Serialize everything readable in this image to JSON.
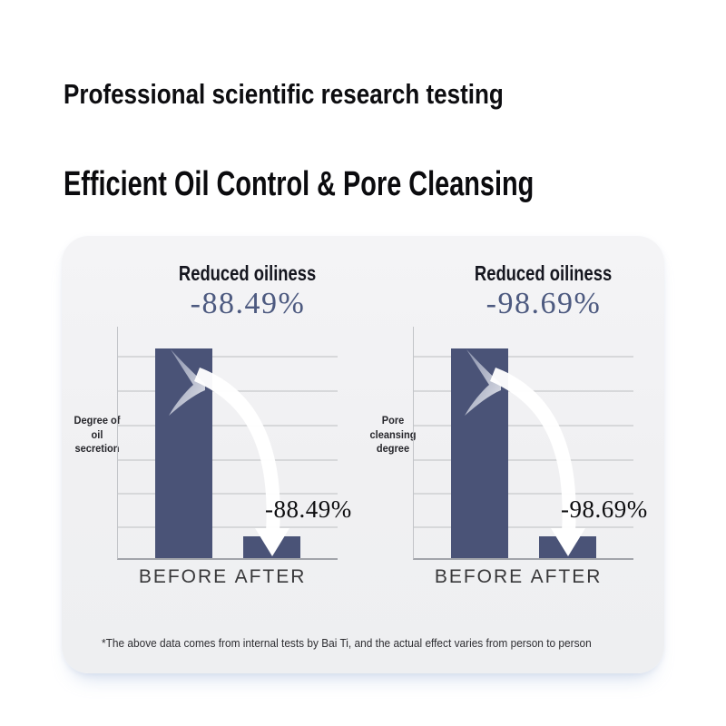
{
  "page": {
    "title_line1": "Professional scientific research testing",
    "title_line2": "Efficient Oil Control & Pore Cleansing",
    "footnote": "*The above data comes from internal tests by Bai Ti, and the actual effect varies from person to person"
  },
  "colors": {
    "bar": "#4a5377",
    "headline_number": "#4d5a80",
    "card_background": "#f1f1f3",
    "gridline": "#d7d8da",
    "title_text": "#0d0d10"
  },
  "chart_data": [
    {
      "type": "bar",
      "title": "Reduced oiliness",
      "headline_value": "-88.49%",
      "ylabel": "Degree of oil secretion",
      "ylabel_lines": [
        "Degree of",
        "oil",
        "secretion"
      ],
      "categories": [
        "BEFORE",
        "AFTER"
      ],
      "values": [
        100,
        11.51
      ],
      "annotation": "-88.49%",
      "grid": true,
      "legend": false,
      "display": {
        "bar_heights_pct": [
          100,
          10.4
        ]
      }
    },
    {
      "type": "bar",
      "title": "Reduced oiliness",
      "headline_value": "-98.69%",
      "ylabel": "Pore cleansing degree",
      "ylabel_lines": [
        "Pore",
        "cleansing",
        "degree"
      ],
      "categories": [
        "BEFORE",
        "AFTER"
      ],
      "values": [
        100,
        1.31
      ],
      "annotation": "-98.69%",
      "grid": true,
      "legend": false,
      "display": {
        "bar_heights_pct": [
          100,
          10.4
        ]
      }
    }
  ]
}
